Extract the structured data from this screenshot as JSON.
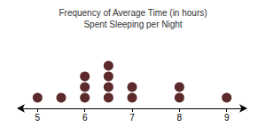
{
  "chart_data": {
    "type": "dot",
    "title": "Frequency of Average Time (in hours)\nSpent Sleeping per Night",
    "x": [
      5,
      5.5,
      6,
      6.5,
      7,
      8,
      9
    ],
    "values": [
      1,
      1,
      3,
      4,
      2,
      2,
      1
    ],
    "color": "#5c2a2a",
    "marker": "circle",
    "xlim": [
      4.6,
      9.4
    ],
    "xticks": [
      5,
      6,
      7,
      8,
      9
    ],
    "grid": false,
    "tick_labels": "x"
  }
}
